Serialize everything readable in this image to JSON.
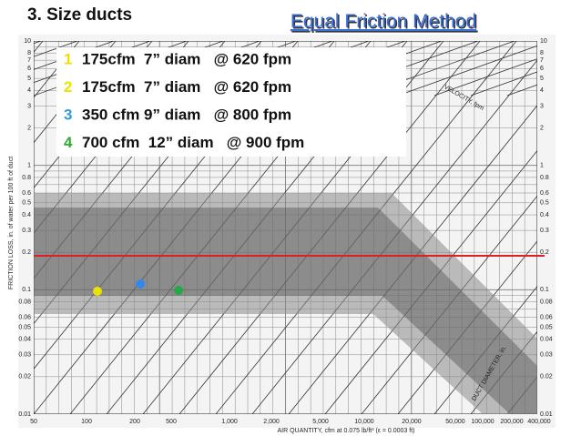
{
  "header": {
    "title": "3. Size ducts",
    "subtitle": "Equal Friction Method"
  },
  "items": [
    {
      "number": "1",
      "text": "175cfm  7” diam   @ 620 fpm"
    },
    {
      "number": "2",
      "text": "175cfm  7” diam   @ 620 fpm"
    },
    {
      "number": "3",
      "text": "350 cfm 9” diam   @ 800 fpm"
    },
    {
      "number": "4",
      "text": "700 cfm  12” diam   @ 900 fpm"
    }
  ],
  "chart": {
    "x_axis_title": "AIR QUANTITY, cfm at 0.075 lb/ft³ (ε = 0.0003 ft)",
    "y_axis_title": "FRICTION LOSS, in. of water per 100 ft of duct",
    "velocity_title": "VELOCITY, fpm",
    "diameter_title": "DUCT DIAMETER, in.",
    "x_labels": [
      "50",
      "100",
      "200",
      "500",
      "1,000",
      "2,000",
      "5,000",
      "10,000",
      "20,000",
      "50,000",
      "100,000",
      "200,000",
      "400,000"
    ],
    "y_labels": [
      "10",
      "8",
      "7",
      "6",
      "5",
      "4",
      "3",
      "2",
      "1",
      "0.8",
      "0.6",
      "0.5",
      "0.4",
      "0.3",
      "0.2",
      "0.1",
      "0.08",
      "0.06",
      "0.05",
      "0.04",
      "0.03",
      "0.02",
      "0.01"
    ]
  }
}
